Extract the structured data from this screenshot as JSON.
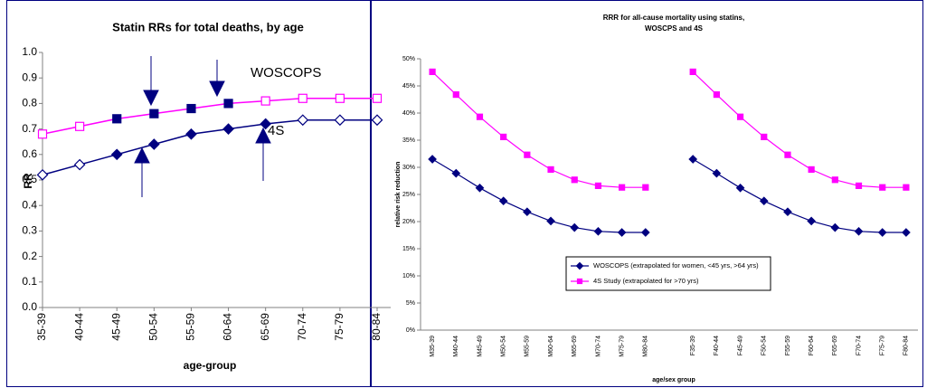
{
  "chart_data": [
    {
      "type": "line",
      "title": "Statin RRs for total deaths, by age",
      "x_label": "age-group",
      "y_label": "RR",
      "categories": [
        "35-39",
        "40-44",
        "45-49",
        "50-54",
        "55-59",
        "60-64",
        "65-69",
        "70-74",
        "75-79",
        "80-84"
      ],
      "series": [
        {
          "name": "WOSCOPS",
          "color": "#ff00ff",
          "marker": "square",
          "values": [
            0.68,
            0.71,
            0.74,
            0.76,
            0.78,
            0.8,
            0.81,
            0.82,
            0.82,
            0.82
          ],
          "filled": [
            false,
            false,
            true,
            true,
            true,
            true,
            false,
            false,
            false,
            false
          ]
        },
        {
          "name": "4S",
          "color": "#000080",
          "marker": "diamond",
          "values": [
            0.52,
            0.56,
            0.6,
            0.64,
            0.68,
            0.7,
            0.72,
            0.735,
            0.735,
            0.735
          ],
          "filled": [
            false,
            false,
            true,
            true,
            true,
            true,
            true,
            false,
            false,
            false
          ]
        }
      ],
      "ylim": [
        0,
        1
      ],
      "yticks": [
        {
          "value": 0,
          "label": "0.0"
        },
        0.1,
        0.2,
        0.3,
        0.4,
        0.5,
        0.6,
        0.7,
        0.8,
        0.9,
        {
          "value": 1,
          "label": "1.0"
        }
      ],
      "legend": false
    },
    {
      "type": "line",
      "title": [
        "RRR for all-cause mortality using statins,",
        "WOSCPS and 4S"
      ],
      "x_label": "age/sex group",
      "y_label": "relative risk reduction",
      "categories": [
        "M35-39",
        "M40-44",
        "M45-49",
        "M50-54",
        "M55-59",
        "M60-64",
        "M65-69",
        "M70-74",
        "M75-79",
        "M80-84",
        null,
        "F35-39",
        "F40-44",
        "F45-49",
        "F50-54",
        "F55-59",
        "F60-64",
        "F65-69",
        "F70-74",
        "F75-79",
        "F80-84"
      ],
      "series": [
        {
          "name": "WOSCOPS (extrapolated for women, <45 yrs, >64 yrs)",
          "color": "#000080",
          "marker": "diamond",
          "values": [
            31.5,
            28.9,
            26.2,
            23.8,
            21.8,
            20.1,
            18.9,
            18.2,
            18.0,
            18.0,
            null,
            31.5,
            28.9,
            26.2,
            23.8,
            21.8,
            20.1,
            18.9,
            18.2,
            18.0,
            18.0
          ]
        },
        {
          "name": "4S Study (extrapolated for >70 yrs)",
          "color": "#ff00ff",
          "marker": "square",
          "values": [
            47.6,
            43.4,
            39.3,
            35.6,
            32.3,
            29.6,
            27.7,
            26.6,
            26.3,
            26.3,
            null,
            47.6,
            43.4,
            39.3,
            35.6,
            32.3,
            29.6,
            27.7,
            26.6,
            26.3,
            26.3
          ]
        }
      ],
      "ylim": [
        0,
        50
      ],
      "yticks": [
        {
          "value": 0,
          "label": "0%"
        },
        {
          "value": 5,
          "label": "5%"
        },
        {
          "value": 10,
          "label": "10%"
        },
        {
          "value": 15,
          "label": "15%"
        },
        {
          "value": 20,
          "label": "20%"
        },
        {
          "value": 25,
          "label": "25%"
        },
        {
          "value": 30,
          "label": "30%"
        },
        {
          "value": 35,
          "label": "35%"
        },
        {
          "value": 40,
          "label": "40%"
        },
        {
          "value": 45,
          "label": "45%"
        },
        {
          "value": 50,
          "label": "50%"
        }
      ],
      "legend": true
    }
  ],
  "annotations": [
    "WOSCOPS",
    "4S"
  ]
}
